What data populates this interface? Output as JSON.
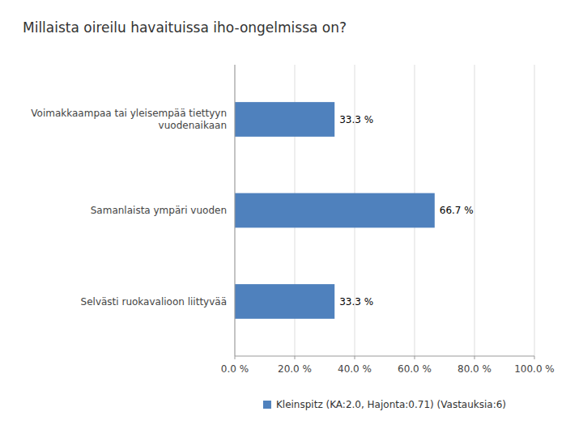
{
  "chart_data": {
    "type": "bar",
    "orientation": "horizontal",
    "title": "Millaista oireilu havaituissa iho-ongelmissa on?",
    "categories": [
      "Selvästi ruokavalioon liittyvää",
      "Samanlaista ympäri vuoden",
      "Voimakkaampaa tai yleisempää tiettyyn vuodenaikaan"
    ],
    "series": [
      {
        "name": "Kleinspitz (KA:2.0, Hajonta:0.71) (Vastauksia:6)",
        "color": "#4F81BD",
        "values": [
          33.3,
          66.7,
          33.3
        ],
        "value_labels": [
          "33.3 %",
          "66.7 %",
          "33.3 %"
        ]
      }
    ],
    "xlim": [
      0,
      100
    ],
    "xticks": [
      {
        "value": 0,
        "label": "0.0 %"
      },
      {
        "value": 20,
        "label": "20.0 %"
      },
      {
        "value": 40,
        "label": "40.0 %"
      },
      {
        "value": 60,
        "label": "60.0 %"
      },
      {
        "value": 80,
        "label": "80.0 %"
      },
      {
        "value": 100,
        "label": "100.0 %"
      }
    ],
    "grid": true,
    "data_labels": true,
    "legend": "bottom"
  }
}
